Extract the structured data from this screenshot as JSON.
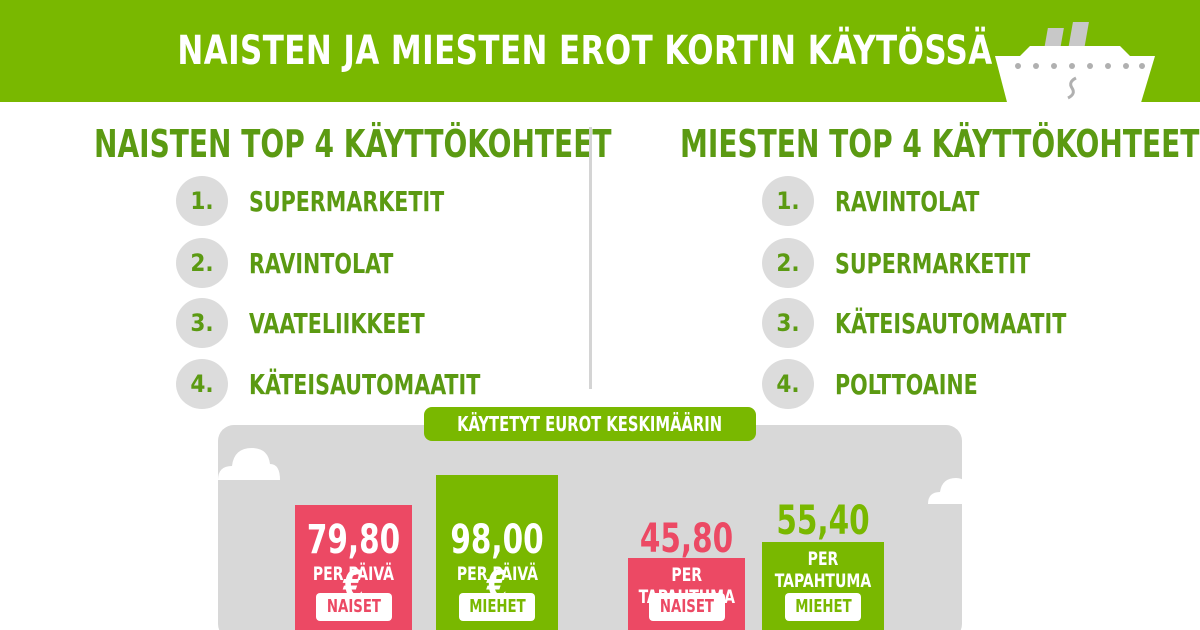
{
  "header": {
    "title": "NAISTEN JA MIESTEN EROT KORTIN KÄYTÖSSÄ",
    "ship_icon": "ship-icon",
    "colors": {
      "banner": "#79b800",
      "text": "#ffffff"
    }
  },
  "women": {
    "title": "NAISTEN TOP 4 KÄYTTÖKOHTEET",
    "items": [
      {
        "rank": "1.",
        "label": "SUPERMARKETIT"
      },
      {
        "rank": "2.",
        "label": "RAVINTOLAT"
      },
      {
        "rank": "3.",
        "label": "VAATELIIKKEET"
      },
      {
        "rank": "4.",
        "label": "KÄTEISAUTOMAATIT"
      }
    ]
  },
  "men": {
    "title": "MIESTEN TOP 4 KÄYTTÖKOHTEET",
    "items": [
      {
        "rank": "1.",
        "label": "RAVINTOLAT"
      },
      {
        "rank": "2.",
        "label": "SUPERMARKETIT"
      },
      {
        "rank": "3.",
        "label": "KÄTEISAUTOMAATIT"
      },
      {
        "rank": "4.",
        "label": "POLTTOAINE"
      }
    ]
  },
  "spending": {
    "title": "KÄYTETYT EUROT KESKIMÄÄRIN",
    "per_day": {
      "women": {
        "value": "79,80 €",
        "unit": "PER PÄIVÄ",
        "tag": "NAISET"
      },
      "men": {
        "value": "98,00 €",
        "unit": "PER PÄIVÄ",
        "tag": "MIEHET"
      }
    },
    "per_transaction": {
      "women": {
        "value": "45,80 €",
        "unit": "PER TAPAHTUMA",
        "tag": "NAISET"
      },
      "men": {
        "value": "55,40 €",
        "unit": "PER TAPAHTUMA",
        "tag": "MIEHET"
      }
    },
    "colors": {
      "women": "#ec4964",
      "men": "#79b800",
      "panel": "#d8d8d8"
    }
  }
}
